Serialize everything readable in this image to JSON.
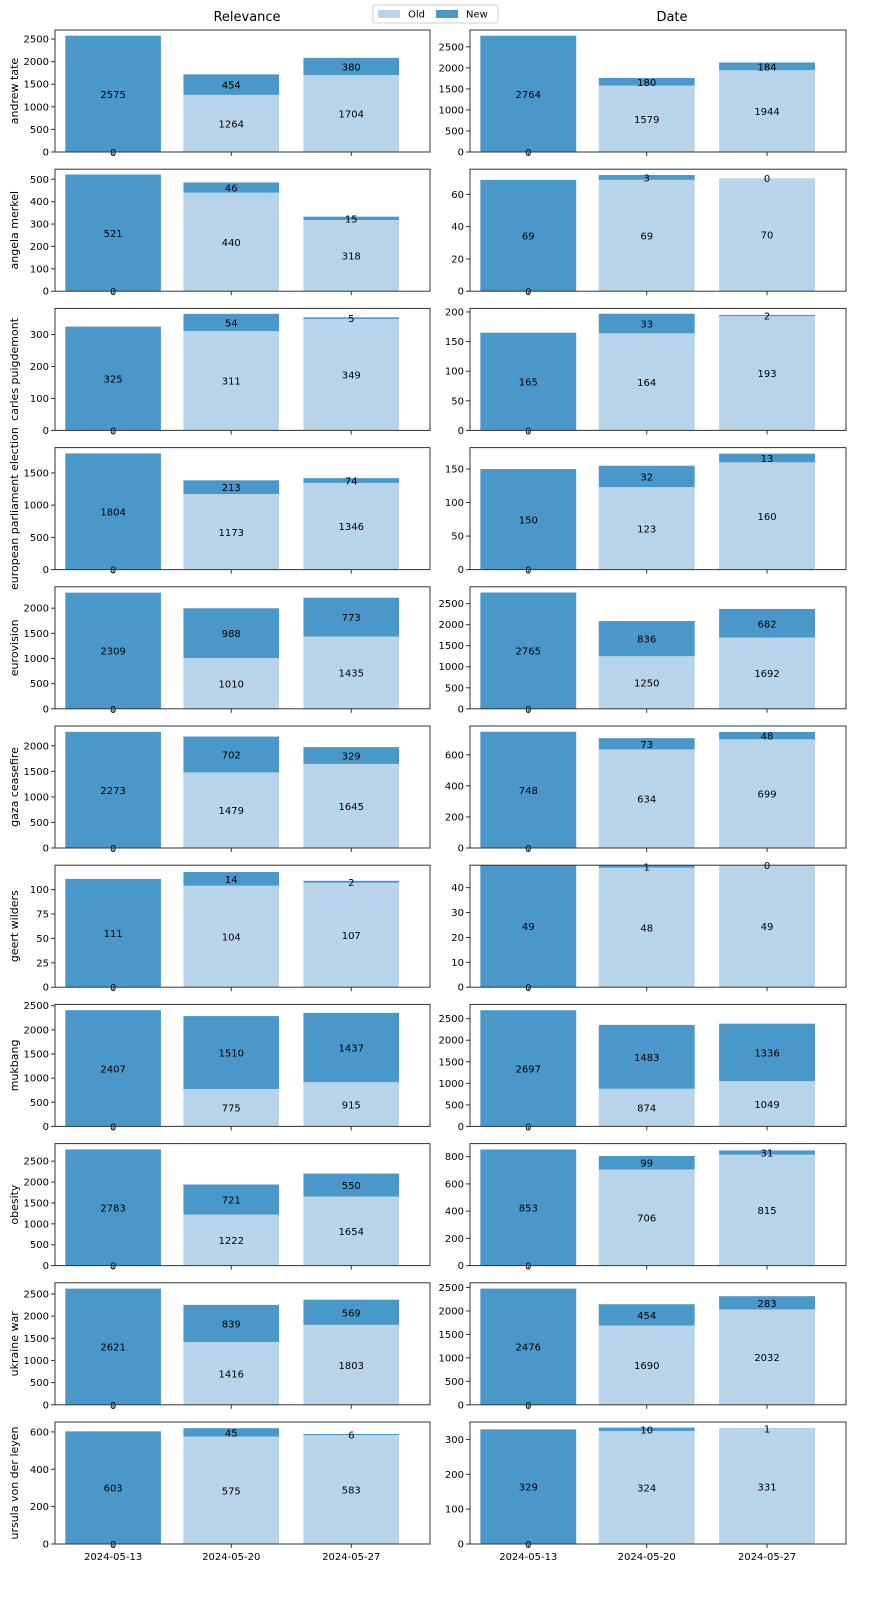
{
  "legend": {
    "placement": "top-center",
    "entries": [
      {
        "label": "Old",
        "color": "#b7d4ea"
      },
      {
        "label": "New",
        "color": "#4a98c9"
      }
    ]
  },
  "colors": {
    "old": "#b7d4ea",
    "new": "#4a98c9"
  },
  "column_titles": [
    "Relevance",
    "Date"
  ],
  "x_tick_labels": [
    "2024-05-13",
    "2024-05-20",
    "2024-05-27"
  ],
  "chart_data": {
    "type": "bar",
    "stacked": true,
    "layout": "grid 11 rows x 2 columns",
    "columns": [
      "Relevance",
      "Date"
    ],
    "categories": [
      "2024-05-13",
      "2024-05-20",
      "2024-05-27"
    ],
    "series_names": [
      "Old",
      "New"
    ],
    "grid": false,
    "rows": [
      {
        "label": "andrew tate",
        "relevance": {
          "old": [
            0,
            1264,
            1704
          ],
          "new": [
            2575,
            454,
            380
          ],
          "ylim": [
            0,
            2700
          ],
          "yticks": [
            0,
            500,
            1000,
            1500,
            2000,
            2500
          ]
        },
        "date": {
          "old": [
            0,
            1579,
            1944
          ],
          "new": [
            2764,
            180,
            184
          ],
          "ylim": [
            0,
            2900
          ],
          "yticks": [
            0,
            500,
            1000,
            1500,
            2000,
            2500
          ]
        }
      },
      {
        "label": "angela merkel",
        "relevance": {
          "old": [
            0,
            440,
            318
          ],
          "new": [
            521,
            46,
            15
          ],
          "ylim": [
            0,
            545
          ],
          "yticks": [
            0,
            100,
            200,
            300,
            400,
            500
          ]
        },
        "date": {
          "old": [
            0,
            69,
            70
          ],
          "new": [
            69,
            3,
            0
          ],
          "ylim": [
            0,
            75.6
          ],
          "yticks": [
            0,
            20,
            40,
            60
          ]
        }
      },
      {
        "label": "carles puigdemont",
        "relevance": {
          "old": [
            0,
            311,
            349
          ],
          "new": [
            325,
            54,
            5
          ],
          "ylim": [
            0,
            382
          ],
          "yticks": [
            0,
            100,
            200,
            300
          ]
        },
        "date": {
          "old": [
            0,
            164,
            193
          ],
          "new": [
            165,
            33,
            2
          ],
          "ylim": [
            0,
            206
          ],
          "yticks": [
            0,
            50,
            100,
            150,
            200
          ]
        }
      },
      {
        "label": "european parliament election",
        "relevance": {
          "old": [
            0,
            1173,
            1346
          ],
          "new": [
            1804,
            213,
            74
          ],
          "ylim": [
            0,
            1894
          ],
          "yticks": [
            0,
            500,
            1000,
            1500
          ]
        },
        "date": {
          "old": [
            0,
            123,
            160
          ],
          "new": [
            150,
            32,
            13
          ],
          "ylim": [
            0,
            182
          ],
          "yticks": [
            0,
            50,
            100,
            150
          ]
        }
      },
      {
        "label": "eurovision",
        "relevance": {
          "old": [
            0,
            1010,
            1435
          ],
          "new": [
            2309,
            988,
            773
          ],
          "ylim": [
            0,
            2425
          ],
          "yticks": [
            0,
            500,
            1000,
            1500,
            2000
          ]
        },
        "date": {
          "old": [
            0,
            1250,
            1692
          ],
          "new": [
            2765,
            836,
            682
          ],
          "ylim": [
            0,
            2900
          ],
          "yticks": [
            0,
            500,
            1000,
            1500,
            2000,
            2500
          ]
        }
      },
      {
        "label": "gaza ceasefire",
        "relevance": {
          "old": [
            0,
            1479,
            1645
          ],
          "new": [
            2273,
            702,
            329
          ],
          "ylim": [
            0,
            2387
          ],
          "yticks": [
            0,
            500,
            1000,
            1500,
            2000
          ]
        },
        "date": {
          "old": [
            0,
            634,
            699
          ],
          "new": [
            748,
            73,
            48
          ],
          "ylim": [
            0,
            785
          ],
          "yticks": [
            0,
            200,
            400,
            600
          ]
        }
      },
      {
        "label": "geert wilders",
        "relevance": {
          "old": [
            0,
            104,
            107
          ],
          "new": [
            111,
            14,
            2
          ],
          "ylim": [
            0,
            125
          ],
          "yticks": [
            0,
            25,
            50,
            75,
            100
          ]
        },
        "date": {
          "old": [
            0,
            48,
            49
          ],
          "new": [
            49,
            1,
            0
          ],
          "ylim": [
            0,
            49
          ],
          "yticks": [
            0,
            10,
            20,
            30,
            40
          ]
        }
      },
      {
        "label": "mukbang",
        "relevance": {
          "old": [
            0,
            775,
            915
          ],
          "new": [
            2407,
            1510,
            1437
          ],
          "ylim": [
            0,
            2527
          ],
          "yticks": [
            0,
            500,
            1000,
            1500,
            2000,
            2500
          ]
        },
        "date": {
          "old": [
            0,
            874,
            1049
          ],
          "new": [
            2697,
            1483,
            1336
          ],
          "ylim": [
            0,
            2832
          ],
          "yticks": [
            0,
            500,
            1000,
            1500,
            2000,
            2500
          ]
        }
      },
      {
        "label": "obesity",
        "relevance": {
          "old": [
            0,
            1222,
            1654
          ],
          "new": [
            2783,
            721,
            550
          ],
          "ylim": [
            0,
            2922
          ],
          "yticks": [
            0,
            500,
            1000,
            1500,
            2000,
            2500
          ]
        },
        "date": {
          "old": [
            0,
            706,
            815
          ],
          "new": [
            853,
            99,
            31
          ],
          "ylim": [
            0,
            896
          ],
          "yticks": [
            0,
            200,
            400,
            600,
            800
          ]
        }
      },
      {
        "label": "ukraine war",
        "relevance": {
          "old": [
            0,
            1416,
            1803
          ],
          "new": [
            2621,
            839,
            569
          ],
          "ylim": [
            0,
            2752
          ],
          "yticks": [
            0,
            500,
            1000,
            1500,
            2000,
            2500
          ]
        },
        "date": {
          "old": [
            0,
            1690,
            2032
          ],
          "new": [
            2476,
            454,
            283
          ],
          "ylim": [
            0,
            2600
          ],
          "yticks": [
            0,
            500,
            1000,
            1500,
            2000,
            2500
          ]
        }
      },
      {
        "label": "ursula von der leyen",
        "relevance": {
          "old": [
            0,
            575,
            583
          ],
          "new": [
            603,
            45,
            6
          ],
          "ylim": [
            0,
            653
          ],
          "yticks": [
            0,
            200,
            400,
            600
          ]
        },
        "date": {
          "old": [
            0,
            324,
            331
          ],
          "new": [
            329,
            10,
            1
          ],
          "ylim": [
            0,
            350
          ],
          "yticks": [
            0,
            100,
            200,
            300
          ]
        }
      }
    ]
  }
}
